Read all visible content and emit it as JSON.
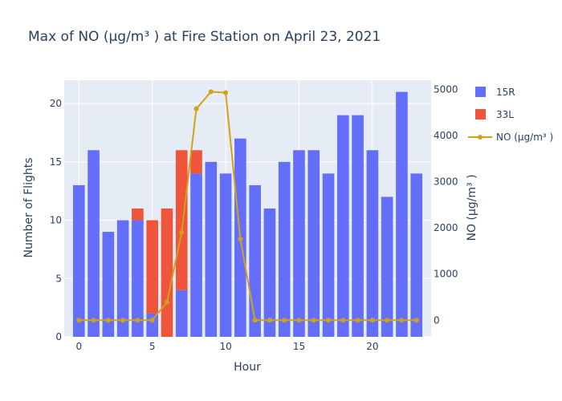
{
  "chart_data": {
    "type": "bar",
    "title": "Max of NO (µg/m³ ) at Fire Station on April 23, 2021",
    "xlabel": "Hour",
    "ylabel": "Number of Flights",
    "y2label": "NO (µg/m³ )",
    "barmode": "stack",
    "xlim": [
      -1,
      24
    ],
    "ylim": [
      0,
      22
    ],
    "y2lim": [
      -360,
      5200
    ],
    "x_ticks": [
      0,
      5,
      10,
      15,
      20
    ],
    "y_ticks": [
      0,
      5,
      10,
      15,
      20
    ],
    "y2_ticks": [
      0,
      1000,
      2000,
      3000,
      4000,
      5000
    ],
    "grid": true,
    "legend_position": "top-right",
    "x": [
      0,
      1,
      2,
      3,
      4,
      5,
      6,
      7,
      8,
      9,
      10,
      11,
      12,
      13,
      14,
      15,
      16,
      17,
      18,
      19,
      20,
      21,
      22,
      23
    ],
    "series": [
      {
        "name": "15R",
        "kind": "bar",
        "axis": "y",
        "color": "#636efa",
        "values": [
          13,
          16,
          9,
          10,
          10,
          2,
          0,
          4,
          14,
          15,
          14,
          17,
          13,
          11,
          15,
          16,
          16,
          14,
          19,
          19,
          16,
          12,
          21,
          14
        ]
      },
      {
        "name": "33L",
        "kind": "bar",
        "axis": "y",
        "color": "#ef553b",
        "values": [
          0,
          0,
          0,
          0,
          1,
          8,
          11,
          12,
          2,
          0,
          0,
          0,
          0,
          0,
          0,
          0,
          0,
          0,
          0,
          0,
          0,
          0,
          0,
          0
        ]
      },
      {
        "name": "NO (µg/m³ )",
        "kind": "line",
        "axis": "y2",
        "color": "#d4a017",
        "values": [
          0,
          0,
          0,
          0,
          0,
          0,
          390,
          1900,
          4580,
          4950,
          4930,
          1760,
          0,
          0,
          0,
          0,
          0,
          0,
          0,
          0,
          0,
          0,
          0,
          0
        ]
      }
    ]
  }
}
